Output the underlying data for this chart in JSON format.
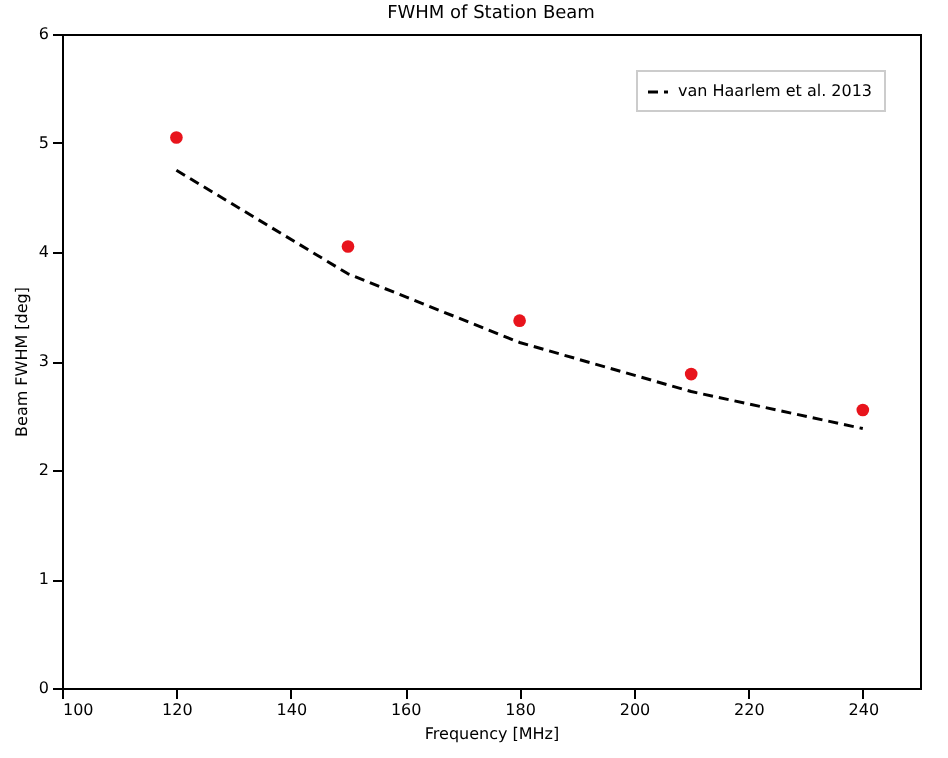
{
  "chart_data": {
    "type": "scatter",
    "title": "FWHM of Station Beam",
    "xlabel": "Frequency [MHz]",
    "ylabel": "Beam FWHM [deg]",
    "x": [
      120,
      150,
      180,
      210,
      240
    ],
    "series": [
      {
        "color": "#e8141c",
        "marker": "circle",
        "values": [
          5.05,
          4.05,
          3.37,
          2.88,
          2.55
        ]
      },
      {
        "type": "line",
        "name": "van Haarlem et al. 2013",
        "color": "#000000",
        "line_style": "dashed",
        "marker": "none",
        "values": [
          4.75,
          3.8,
          3.17,
          2.72,
          2.38
        ]
      }
    ],
    "xlim": [
      100,
      250
    ],
    "xticks": [
      100,
      120,
      140,
      160,
      180,
      200,
      220,
      240
    ],
    "ylim": [
      0,
      6
    ],
    "yticks": [
      0,
      1,
      2,
      3,
      4,
      5,
      6
    ],
    "grid": false,
    "legend": "top right"
  }
}
